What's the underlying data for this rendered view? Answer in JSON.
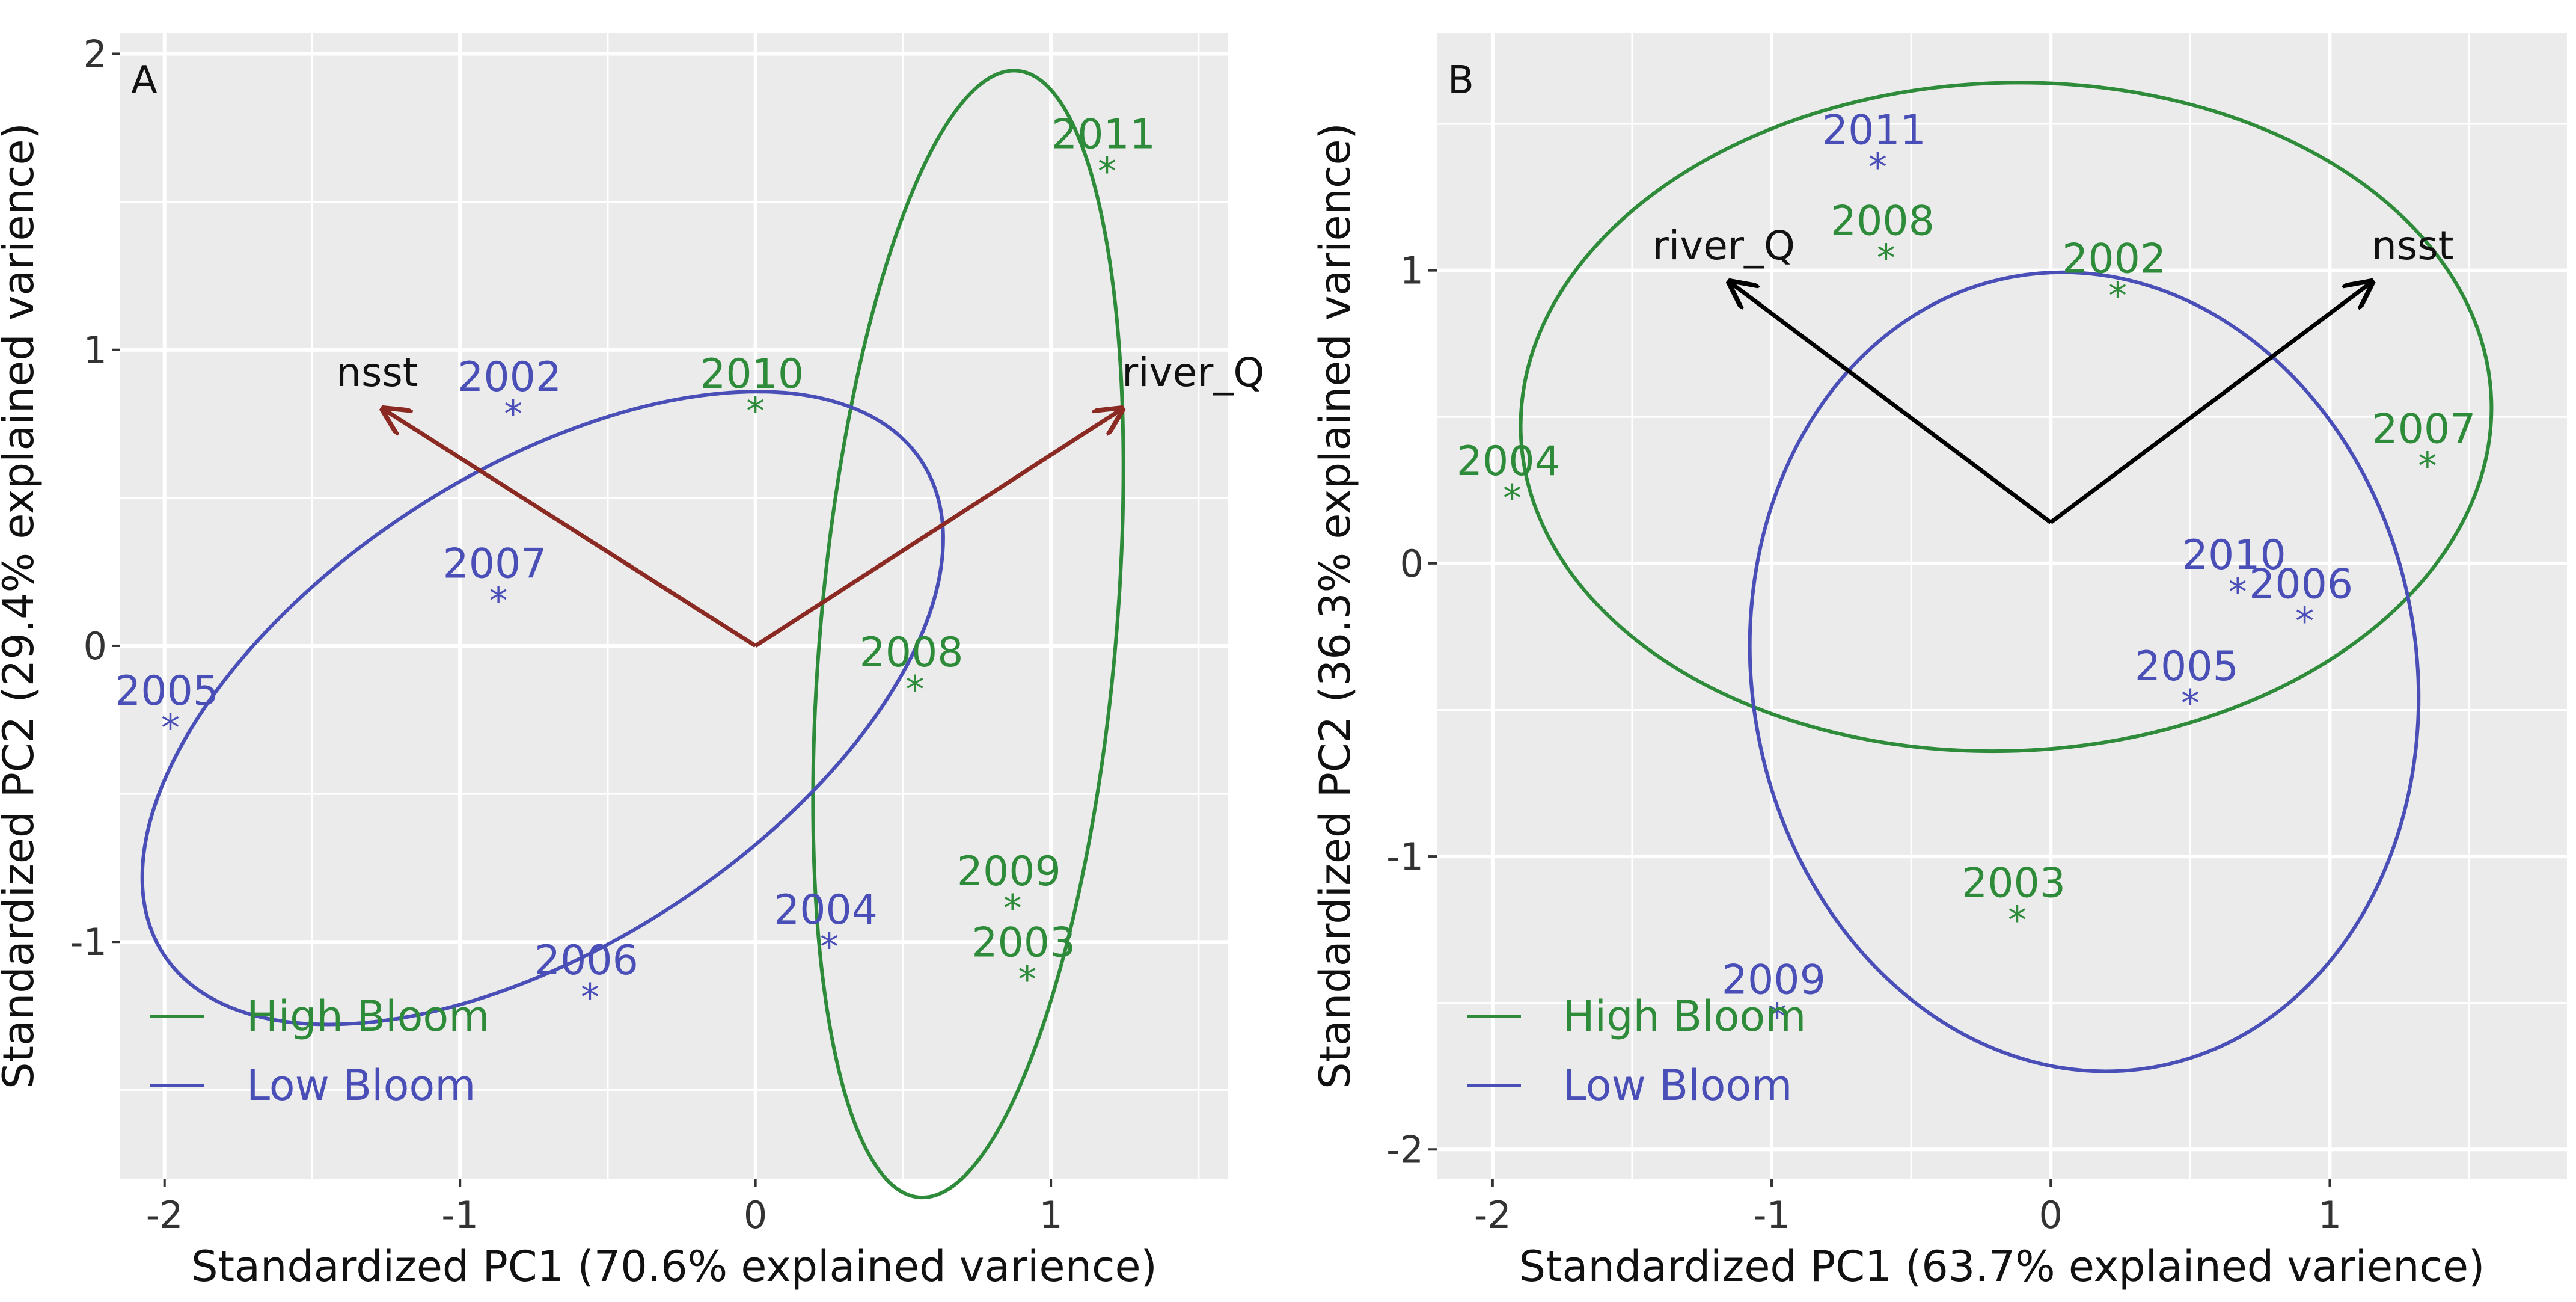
{
  "figure": {
    "colors": {
      "panel_bg": "#EBEBEB",
      "grid": "#FFFFFF",
      "high": "#2E8B3A",
      "low": "#4A4FB8",
      "arrow_a": "#8B2A22",
      "arrow_b": "#000000",
      "text": "#222222",
      "axis_text": "#333333"
    }
  },
  "chart_data": [
    {
      "type": "scatter",
      "panel_label": "A",
      "xlabel": "Standardized PC1 (70.6% explained varience)",
      "ylabel": "Standardized PC2 (29.4% explained varience)",
      "xlim": [
        -2.15,
        1.6
      ],
      "ylim": [
        -1.8,
        2.07
      ],
      "xticks": [
        -2,
        -1,
        0,
        1
      ],
      "yticks": [
        -1,
        0,
        1,
        2
      ],
      "xtick_labels": [
        "-2",
        "-1",
        "0",
        "1"
      ],
      "ytick_labels": [
        "-1",
        "0",
        "1",
        "2"
      ],
      "grid": true,
      "legend_position": "bottom-left",
      "legend": [
        {
          "label": "High Bloom",
          "group": "high"
        },
        {
          "label": "Low Bloom",
          "group": "low"
        }
      ],
      "points": [
        {
          "label": "2011",
          "x": 1.19,
          "y": 1.62,
          "group": "high"
        },
        {
          "label": "2010",
          "x": 0.0,
          "y": 0.81,
          "group": "high"
        },
        {
          "label": "2008",
          "x": 0.54,
          "y": -0.13,
          "group": "high"
        },
        {
          "label": "2009",
          "x": 0.87,
          "y": -0.87,
          "group": "high"
        },
        {
          "label": "2003",
          "x": 0.92,
          "y": -1.11,
          "group": "high"
        },
        {
          "label": "2002",
          "x": -0.82,
          "y": 0.8,
          "group": "low"
        },
        {
          "label": "2007",
          "x": -0.87,
          "y": 0.17,
          "group": "low"
        },
        {
          "label": "2005",
          "x": -1.98,
          "y": -0.26,
          "group": "low"
        },
        {
          "label": "2006",
          "x": -0.56,
          "y": -1.17,
          "group": "low"
        },
        {
          "label": "2004",
          "x": 0.25,
          "y": -1.0,
          "group": "low"
        }
      ],
      "arrows": [
        {
          "label": "nsst",
          "x0": 0,
          "y0": 0,
          "x1": -1.26,
          "y1": 0.8
        },
        {
          "label": "river_Q",
          "x0": 0,
          "y0": 0,
          "x1": 1.24,
          "y1": 0.8
        }
      ],
      "ellipses": [
        {
          "group": "high",
          "cx": 0.72,
          "cy": 0.04,
          "rx": 0.5,
          "ry": 1.91,
          "angle": 5
        },
        {
          "group": "low",
          "cx": -0.72,
          "cy": -0.21,
          "rx": 1.53,
          "ry": 0.8,
          "angle": -33
        }
      ]
    },
    {
      "type": "scatter",
      "panel_label": "B",
      "xlabel": "Standardized PC1 (63.7% explained varience)",
      "ylabel": "Standardized PC2 (36.3% explained varience)",
      "xlim": [
        -2.2,
        1.85
      ],
      "ylim": [
        -2.1,
        1.81
      ],
      "xticks": [
        -2,
        -1,
        0,
        1
      ],
      "yticks": [
        -2,
        -1,
        0,
        1
      ],
      "xtick_labels": [
        "-2",
        "-1",
        "0",
        "1"
      ],
      "ytick_labels": [
        "-2",
        "-1",
        "0",
        "1"
      ],
      "grid": true,
      "legend_position": "bottom-left",
      "legend": [
        {
          "label": "High Bloom",
          "group": "high"
        },
        {
          "label": "Low Bloom",
          "group": "low"
        }
      ],
      "points": [
        {
          "label": "2008",
          "x": -0.59,
          "y": 1.06,
          "group": "high"
        },
        {
          "label": "2002",
          "x": 0.24,
          "y": 0.93,
          "group": "high"
        },
        {
          "label": "2007",
          "x": 1.35,
          "y": 0.35,
          "group": "high"
        },
        {
          "label": "2004",
          "x": -1.93,
          "y": 0.24,
          "group": "high"
        },
        {
          "label": "2003",
          "x": -0.12,
          "y": -1.2,
          "group": "high"
        },
        {
          "label": "2011",
          "x": -0.62,
          "y": 1.37,
          "group": "low"
        },
        {
          "label": "2010",
          "x": 0.67,
          "y": -0.08,
          "group": "low"
        },
        {
          "label": "2006",
          "x": 0.91,
          "y": -0.18,
          "group": "low"
        },
        {
          "label": "2005",
          "x": 0.5,
          "y": -0.46,
          "group": "low"
        },
        {
          "label": "2009",
          "x": -0.98,
          "y": -1.53,
          "group": "low"
        }
      ],
      "arrows": [
        {
          "label": "river_Q",
          "x0": 0,
          "y0": 0.14,
          "x1": -1.15,
          "y1": 0.96
        },
        {
          "label": "nsst",
          "x0": 0,
          "y0": 0.14,
          "x1": 1.15,
          "y1": 0.96
        }
      ],
      "ellipses": [
        {
          "group": "high",
          "cx": -0.16,
          "cy": 0.5,
          "rx": 1.74,
          "ry": 1.14,
          "angle": -2
        },
        {
          "group": "low",
          "cx": 0.12,
          "cy": -0.37,
          "rx": 1.19,
          "ry": 1.37,
          "angle": -10
        }
      ]
    }
  ]
}
